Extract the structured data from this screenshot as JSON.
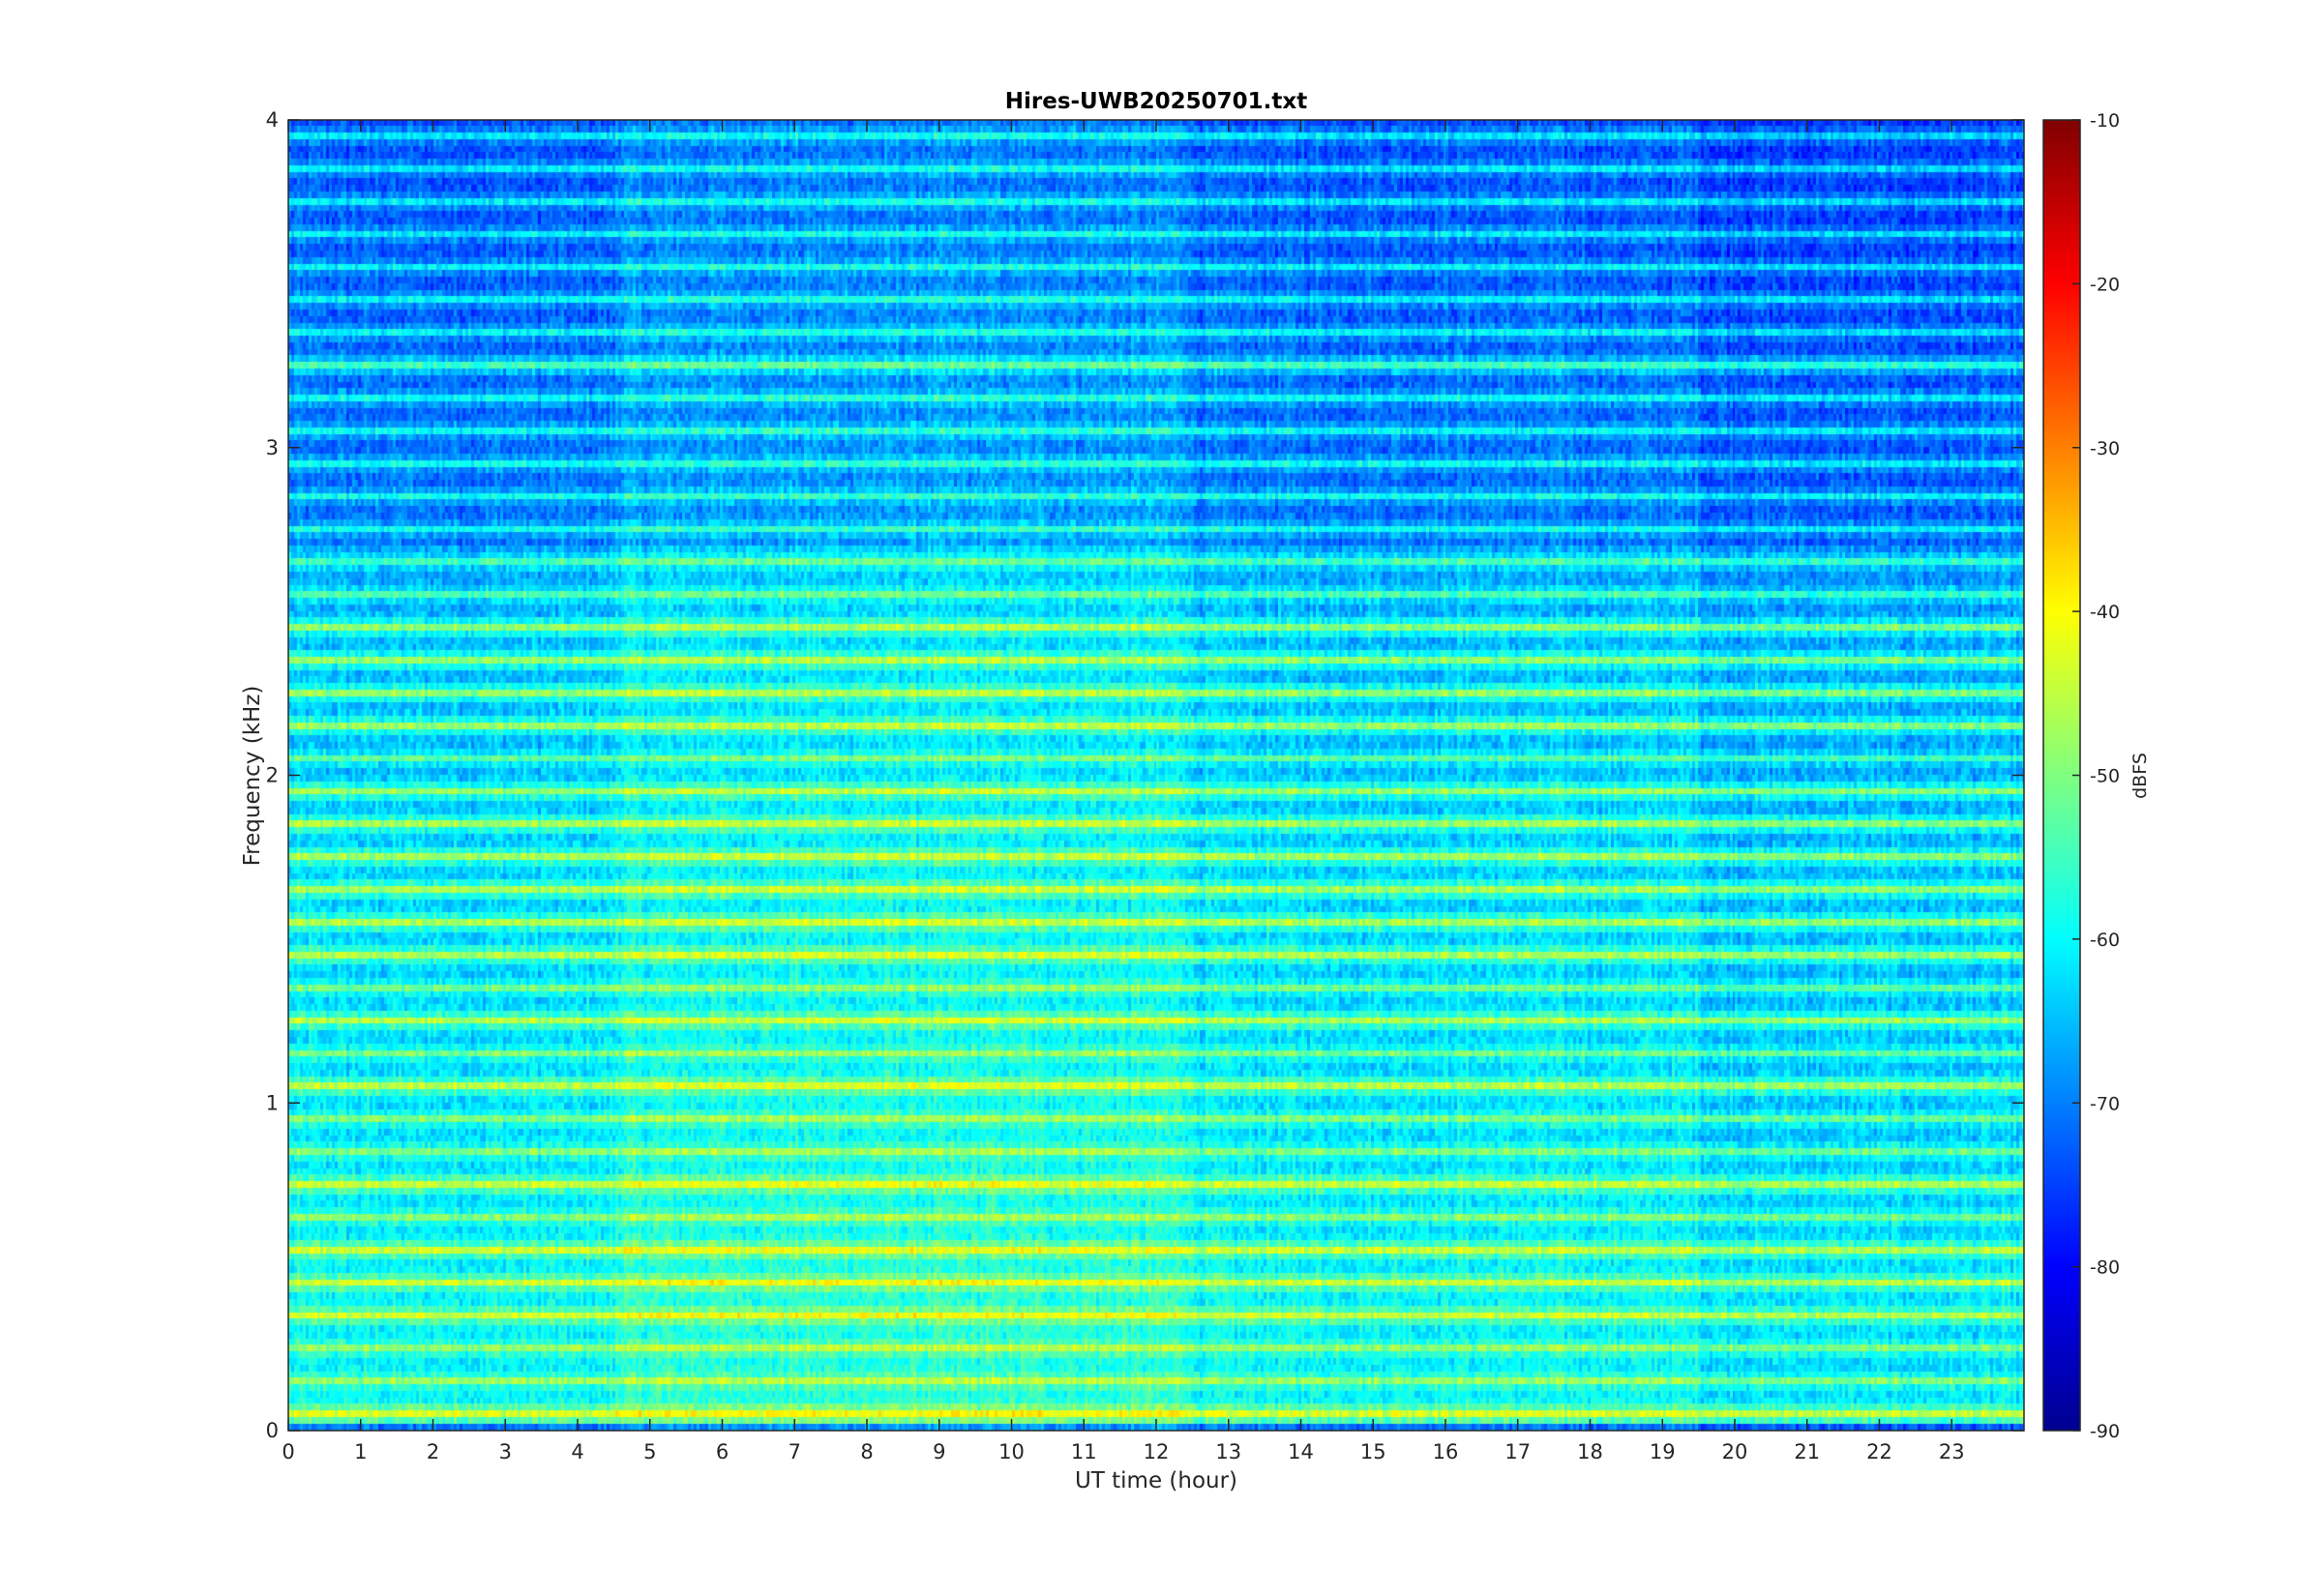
{
  "chart_data": {
    "type": "heatmap",
    "title": "Hires-UWB20250701.txt",
    "xlabel": "UT time (hour)",
    "ylabel": "Frequency (kHz)",
    "xlim": [
      0,
      24
    ],
    "ylim": [
      0,
      4
    ],
    "xticks": [
      0,
      1,
      2,
      3,
      4,
      5,
      6,
      7,
      8,
      9,
      10,
      11,
      12,
      13,
      14,
      15,
      16,
      17,
      18,
      19,
      20,
      21,
      22,
      23
    ],
    "yticks": [
      0,
      1,
      2,
      3,
      4
    ],
    "colorbar": {
      "label": "dBFS",
      "colormap": "jet",
      "range": [
        -90,
        -10
      ],
      "ticks": [
        -10,
        -20,
        -30,
        -40,
        -50,
        -60,
        -70,
        -80,
        -90
      ]
    },
    "grid": false,
    "description_values": {
      "bands_khz_strong": [
        0.05,
        0.35,
        0.45,
        0.55,
        0.75,
        1.05,
        1.25,
        1.45,
        1.55,
        1.65,
        1.75,
        1.85,
        1.95,
        2.15,
        2.25,
        2.35,
        2.45,
        3.25
      ],
      "hot_hours": [
        5.5,
        11.0
      ],
      "cool_after_hour": 19.5
    }
  }
}
